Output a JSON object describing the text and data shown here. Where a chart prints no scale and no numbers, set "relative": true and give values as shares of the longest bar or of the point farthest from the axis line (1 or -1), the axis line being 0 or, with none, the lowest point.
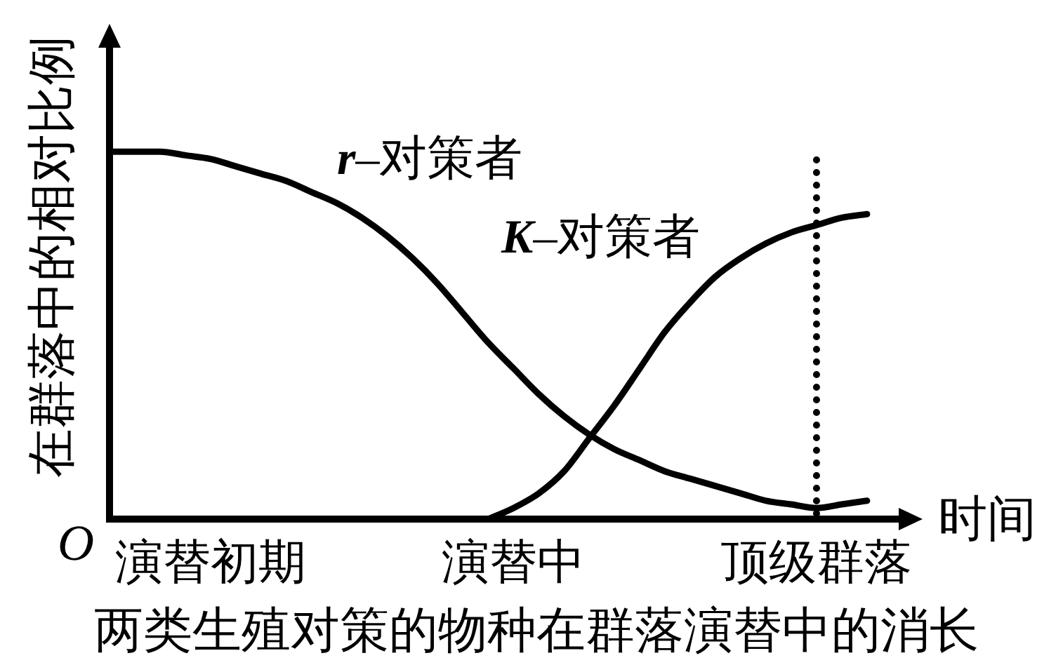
{
  "chart_data": {
    "type": "line",
    "title": "两类生殖对策的物种在群落演替中的消长",
    "xlabel": "时间",
    "ylabel": "在群落中的相对比例",
    "relative": true,
    "categories": [
      null,
      null,
      null,
      null,
      "演替初期",
      null,
      null,
      null,
      null,
      null,
      null,
      null,
      null,
      null,
      null,
      null,
      "演替中",
      null,
      null,
      null,
      null,
      null,
      null,
      null,
      null,
      null,
      null,
      null,
      "顶级群落",
      null,
      null
    ],
    "tick_labels": "x",
    "marker": "none",
    "line_style": "solid",
    "series": [
      {
        "name": "r–对策者",
        "color": "#000000",
        "values": [
          1.0,
          1.0,
          1.0,
          0.99,
          0.98,
          0.96,
          0.94,
          0.92,
          0.89,
          0.86,
          0.82,
          0.77,
          0.71,
          0.64,
          0.56,
          0.48,
          0.41,
          0.34,
          0.28,
          0.23,
          0.19,
          0.16,
          0.13,
          0.11,
          0.09,
          0.07,
          0.05,
          0.04,
          0.03,
          0.04,
          0.05
        ]
      },
      {
        "name": "K–对策者",
        "color": "#000000",
        "values": [
          null,
          null,
          null,
          null,
          null,
          null,
          null,
          null,
          null,
          null,
          null,
          null,
          null,
          null,
          null,
          0,
          0.03,
          0.07,
          0.13,
          0.22,
          0.31,
          0.41,
          0.51,
          0.59,
          0.66,
          0.71,
          0.75,
          0.78,
          0.8,
          0.82,
          0.83
        ]
      }
    ],
    "ref_lines": [
      {
        "axis": "x",
        "value": "顶级群落",
        "color": "#000000",
        "line_style": "dotted"
      }
    ],
    "annotations": [
      "O"
    ]
  }
}
